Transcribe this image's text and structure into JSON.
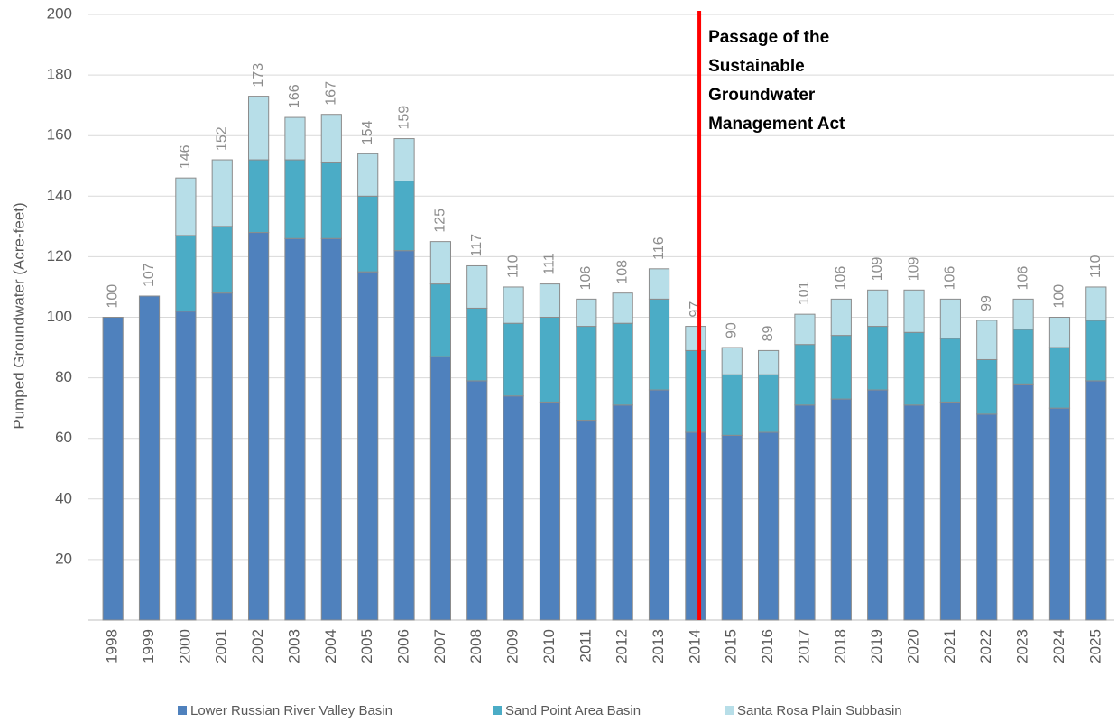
{
  "chart_data": {
    "type": "stacked_bar",
    "ylabel": "Pumped Groundwater (Acre-feet)",
    "categories": [
      "1998",
      "1999",
      "2000",
      "2001",
      "2002",
      "2003",
      "2004",
      "2005",
      "2006",
      "2007",
      "2008",
      "2009",
      "2010",
      "2011",
      "2012",
      "2013",
      "2014",
      "2015",
      "2016",
      "2017",
      "2018",
      "2019",
      "2020",
      "2021",
      "2022",
      "2023",
      "2024",
      "2025"
    ],
    "series": [
      {
        "name": "Lower Russian River Valley Basin",
        "color": "#4f81bd",
        "values": [
          100,
          107,
          102,
          108,
          128,
          126,
          126,
          115,
          122,
          87,
          79,
          74,
          72,
          66,
          71,
          76,
          62,
          61,
          62,
          71,
          73,
          76,
          71,
          72,
          68,
          78,
          70,
          79
        ]
      },
      {
        "name": "Sand Point Area Basin",
        "color": "#4bacc6",
        "values": [
          0,
          0,
          25,
          22,
          24,
          26,
          25,
          25,
          23,
          24,
          24,
          24,
          28,
          31,
          27,
          30,
          27,
          20,
          19,
          20,
          21,
          21,
          24,
          21,
          18,
          18,
          20,
          20
        ]
      },
      {
        "name": "Santa Rosa Plain Subbasin",
        "color": "#b7dee8",
        "values": [
          0,
          0,
          19,
          22,
          21,
          14,
          16,
          14,
          14,
          14,
          14,
          12,
          11,
          9,
          10,
          10,
          8,
          9,
          8,
          10,
          12,
          12,
          14,
          13,
          13,
          10,
          10,
          11
        ]
      }
    ],
    "totals": [
      100,
      107,
      146,
      152,
      173,
      166,
      167,
      154,
      159,
      125,
      117,
      110,
      111,
      106,
      108,
      116,
      97,
      90,
      89,
      101,
      106,
      109,
      109,
      106,
      99,
      106,
      100,
      110
    ],
    "annotation": {
      "lines": [
        "Passage of the",
        "Sustainable",
        "Groundwater",
        "Management Act"
      ],
      "color": "#ff0000"
    },
    "ylim": [
      0,
      200
    ],
    "yticks": [
      20,
      40,
      60,
      80,
      100,
      120,
      140,
      160,
      180,
      200
    ],
    "grid": true,
    "legend": "bottom"
  }
}
